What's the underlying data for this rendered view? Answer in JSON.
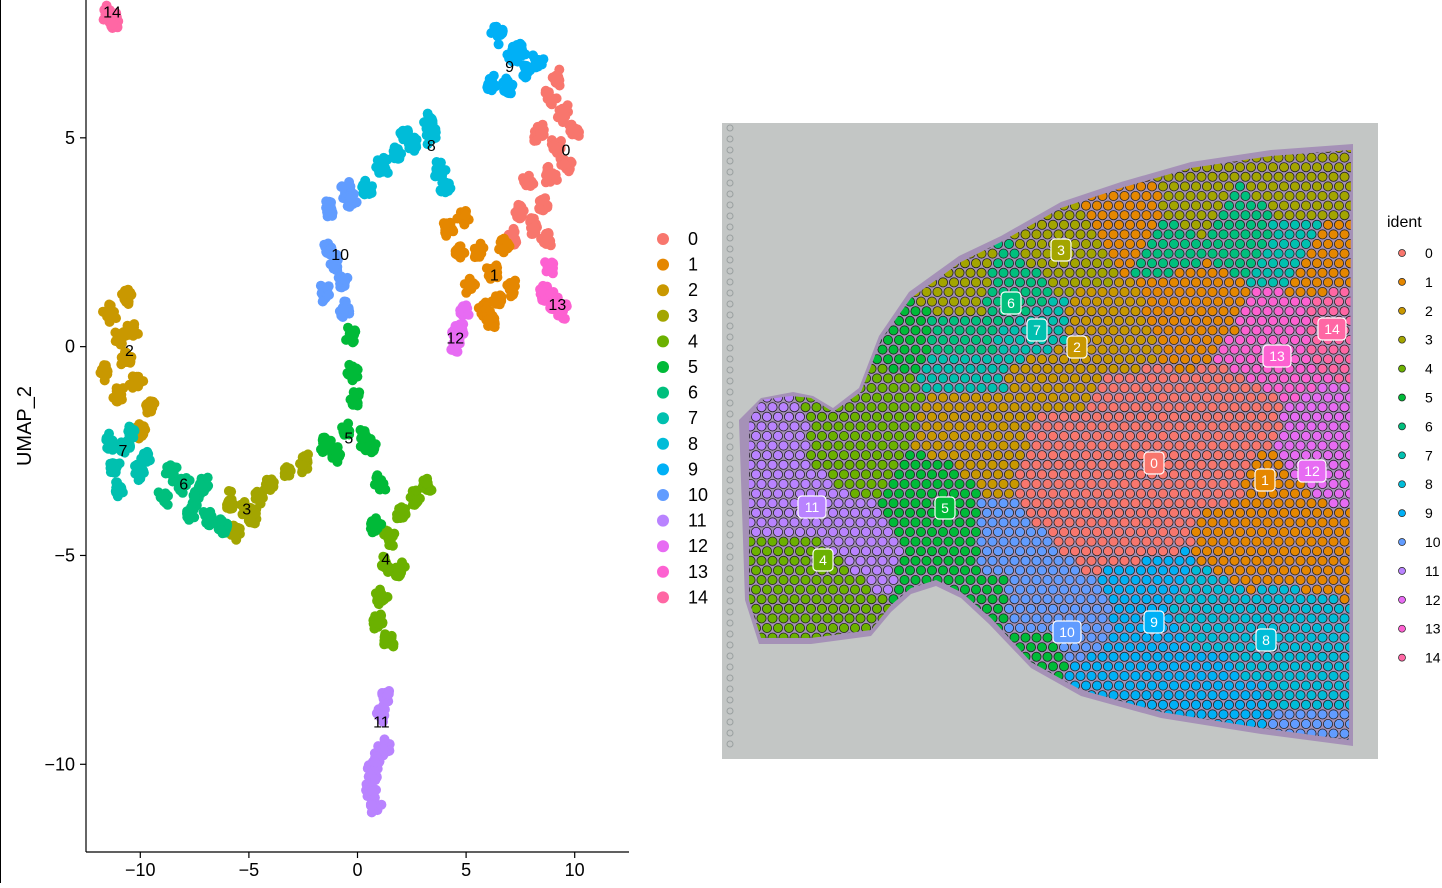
{
  "colors": [
    "#F8766D",
    "#E58700",
    "#C99800",
    "#A3A500",
    "#6BB100",
    "#00BA38",
    "#00BF7D",
    "#00C0AF",
    "#00BCD8",
    "#00B0F6",
    "#619CFF",
    "#B983FF",
    "#E76BF3",
    "#FD61D1",
    "#FF67A4"
  ],
  "chart_data": [
    {
      "type": "scatter",
      "title": "",
      "xlabel": "",
      "ylabel": "UMAP_2",
      "xlim": [
        -12.5,
        12.5
      ],
      "ylim": [
        -12.1,
        8.3
      ],
      "x_ticks": [
        -10,
        -5,
        0,
        5,
        10
      ],
      "y_ticks": [
        -10,
        -5,
        0,
        5
      ],
      "x_tick_labels": [
        "−10",
        "−5",
        "0",
        "5",
        "10"
      ],
      "y_tick_labels": [
        "−10",
        "−5",
        "0",
        "5"
      ],
      "grid": false,
      "legend_position": "right",
      "legend_labels": [
        "0",
        "1",
        "2",
        "3",
        "4",
        "5",
        "6",
        "7",
        "8",
        "9",
        "10",
        "11",
        "12",
        "13",
        "14"
      ],
      "series": [
        {
          "name": "0",
          "points": [
            [
              9.2,
              6.4
            ],
            [
              9.5,
              5.6
            ],
            [
              9.2,
              4.8
            ],
            [
              8.9,
              4.1
            ],
            [
              8.6,
              3.4
            ],
            [
              8.1,
              2.9
            ],
            [
              7.5,
              3.2
            ],
            [
              7.1,
              2.6
            ],
            [
              7.9,
              3.9
            ],
            [
              8.4,
              5.1
            ],
            [
              8.9,
              6.0
            ],
            [
              9.6,
              4.4
            ],
            [
              10.0,
              5.2
            ],
            [
              8.7,
              2.6
            ]
          ]
        },
        {
          "name": "1",
          "points": [
            [
              6.2,
              1.8
            ],
            [
              5.6,
              2.3
            ],
            [
              4.7,
              2.3
            ],
            [
              4.2,
              2.8
            ],
            [
              4.9,
              3.1
            ],
            [
              6.5,
              1.1
            ],
            [
              5.8,
              0.9
            ],
            [
              7.1,
              1.4
            ],
            [
              6.8,
              2.4
            ],
            [
              5.2,
              1.5
            ],
            [
              6.1,
              0.6
            ]
          ]
        },
        {
          "name": "2",
          "points": [
            [
              -10.9,
              0.2
            ],
            [
              -11.4,
              0.8
            ],
            [
              -10.6,
              1.2
            ],
            [
              -11.6,
              -0.6
            ],
            [
              -10.2,
              -0.9
            ],
            [
              -10.4,
              0.4
            ],
            [
              -11.0,
              -1.2
            ],
            [
              -9.6,
              -1.4
            ],
            [
              -10.0,
              -2.0
            ],
            [
              -10.6,
              -0.3
            ]
          ]
        },
        {
          "name": "3",
          "points": [
            [
              -5.1,
              -3.9
            ],
            [
              -5.6,
              -4.4
            ],
            [
              -4.5,
              -3.6
            ],
            [
              -4.0,
              -3.3
            ],
            [
              -3.2,
              -3.0
            ],
            [
              -2.4,
              -2.8
            ],
            [
              -5.9,
              -3.7
            ],
            [
              -4.8,
              -4.1
            ]
          ]
        },
        {
          "name": "4",
          "points": [
            [
              1.3,
              -5.2
            ],
            [
              1.5,
              -4.6
            ],
            [
              2.0,
              -4.0
            ],
            [
              2.7,
              -3.6
            ],
            [
              3.2,
              -3.3
            ],
            [
              1.1,
              -6.0
            ],
            [
              0.9,
              -6.6
            ],
            [
              1.4,
              -7.0
            ],
            [
              1.9,
              -5.4
            ]
          ]
        },
        {
          "name": "5",
          "points": [
            [
              -0.5,
              -2.0
            ],
            [
              -1.5,
              -2.3
            ],
            [
              -0.1,
              -1.3
            ],
            [
              -0.3,
              0.3
            ],
            [
              -0.2,
              -0.6
            ],
            [
              0.6,
              -2.4
            ],
            [
              1.0,
              -3.3
            ],
            [
              0.8,
              -4.3
            ],
            [
              -1.0,
              -2.6
            ],
            [
              0.3,
              -2.2
            ]
          ]
        },
        {
          "name": "6",
          "points": [
            [
              -8.0,
              -3.3
            ],
            [
              -8.6,
              -3.0
            ],
            [
              -7.4,
              -3.6
            ],
            [
              -6.8,
              -4.1
            ],
            [
              -6.2,
              -4.3
            ],
            [
              -8.9,
              -3.6
            ],
            [
              -7.7,
              -4.0
            ],
            [
              -7.1,
              -3.3
            ]
          ]
        },
        {
          "name": "7",
          "points": [
            [
              -10.7,
              -2.4
            ],
            [
              -11.2,
              -2.9
            ],
            [
              -10.1,
              -3.0
            ],
            [
              -11.0,
              -3.4
            ],
            [
              -10.4,
              -2.1
            ],
            [
              -9.7,
              -2.7
            ],
            [
              -11.4,
              -2.3
            ]
          ]
        },
        {
          "name": "8",
          "points": [
            [
              3.4,
              5.1
            ],
            [
              3.3,
              5.4
            ],
            [
              2.6,
              4.9
            ],
            [
              1.9,
              4.6
            ],
            [
              1.1,
              4.3
            ],
            [
              3.8,
              4.2
            ],
            [
              4.1,
              3.8
            ],
            [
              2.2,
              5.1
            ],
            [
              0.4,
              3.8
            ]
          ]
        },
        {
          "name": "9",
          "points": [
            [
              7.2,
              7.0
            ],
            [
              6.5,
              7.5
            ],
            [
              7.8,
              6.6
            ],
            [
              6.2,
              6.3
            ],
            [
              8.3,
              6.8
            ],
            [
              6.9,
              6.2
            ],
            [
              7.5,
              7.1
            ]
          ]
        },
        {
          "name": "10",
          "points": [
            [
              -1.0,
              2.0
            ],
            [
              -1.3,
              2.3
            ],
            [
              -0.7,
              1.5
            ],
            [
              -1.3,
              3.3
            ],
            [
              -0.5,
              3.7
            ],
            [
              -1.5,
              1.3
            ],
            [
              -0.6,
              0.9
            ],
            [
              -0.3,
              3.5
            ]
          ]
        },
        {
          "name": "11",
          "points": [
            [
              1.1,
              -8.8
            ],
            [
              1.2,
              -9.6
            ],
            [
              0.7,
              -10.2
            ],
            [
              0.6,
              -10.6
            ],
            [
              0.8,
              -11.0
            ],
            [
              1.3,
              -8.4
            ],
            [
              0.9,
              -9.9
            ]
          ]
        },
        {
          "name": "12",
          "points": [
            [
              4.7,
              0.4
            ],
            [
              4.5,
              0.0
            ],
            [
              4.9,
              0.8
            ],
            [
              4.6,
              0.3
            ]
          ]
        },
        {
          "name": "13",
          "points": [
            [
              9.0,
              1.1
            ],
            [
              8.6,
              1.3
            ],
            [
              9.4,
              0.9
            ],
            [
              8.9,
              1.9
            ]
          ]
        },
        {
          "name": "14",
          "points": [
            [
              -11.3,
              7.9
            ],
            [
              -11.5,
              8.0
            ],
            [
              -11.2,
              7.8
            ]
          ]
        }
      ],
      "cluster_labels": [
        {
          "text": "0",
          "x": 9.6,
          "y": 4.7
        },
        {
          "text": "1",
          "x": 6.3,
          "y": 1.7
        },
        {
          "text": "2",
          "x": -10.5,
          "y": -0.1
        },
        {
          "text": "3",
          "x": -5.1,
          "y": -3.9
        },
        {
          "text": "4",
          "x": 1.3,
          "y": -5.1
        },
        {
          "text": "5",
          "x": -0.4,
          "y": -2.2
        },
        {
          "text": "6",
          "x": -8.0,
          "y": -3.3
        },
        {
          "text": "7",
          "x": -10.8,
          "y": -2.5
        },
        {
          "text": "8",
          "x": 3.4,
          "y": 4.8
        },
        {
          "text": "9",
          "x": 7.0,
          "y": 6.7
        },
        {
          "text": "10",
          "x": -0.8,
          "y": 2.2
        },
        {
          "text": "11",
          "x": 1.1,
          "y": -9.0
        },
        {
          "text": "12",
          "x": 4.5,
          "y": 0.2
        },
        {
          "text": "13",
          "x": 9.2,
          "y": 1.0
        },
        {
          "text": "14",
          "x": -11.3,
          "y": 8.0
        }
      ]
    },
    {
      "type": "scatter",
      "title": "",
      "legend_title": "ident",
      "legend_position": "right",
      "legend_labels": [
        "0",
        "1",
        "2",
        "3",
        "4",
        "5",
        "6",
        "7",
        "8",
        "9",
        "10",
        "11",
        "12",
        "13",
        "14"
      ],
      "spot_labels": [
        {
          "text": "0",
          "cluster": 0
        },
        {
          "text": "1",
          "cluster": 1
        },
        {
          "text": "2",
          "cluster": 2
        },
        {
          "text": "3",
          "cluster": 3
        },
        {
          "text": "4",
          "cluster": 4
        },
        {
          "text": "5",
          "cluster": 5
        },
        {
          "text": "6",
          "cluster": 6
        },
        {
          "text": "7",
          "cluster": 7
        },
        {
          "text": "8",
          "cluster": 8
        },
        {
          "text": "9",
          "cluster": 9
        },
        {
          "text": "10",
          "cluster": 10
        },
        {
          "text": "11",
          "cluster": 11
        },
        {
          "text": "12",
          "cluster": 12
        },
        {
          "text": "13",
          "cluster": 13
        },
        {
          "text": "14",
          "cluster": 14
        }
      ]
    }
  ]
}
